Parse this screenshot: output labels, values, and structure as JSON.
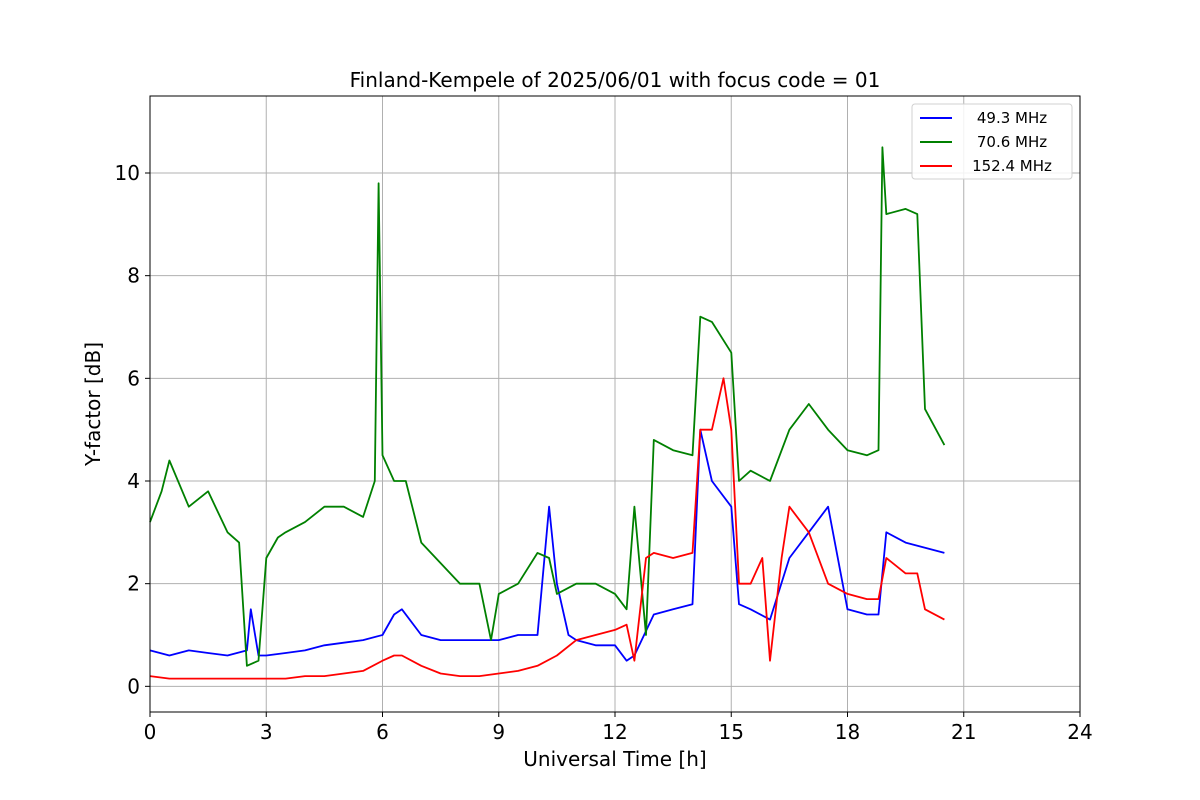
{
  "chart_data": {
    "type": "line",
    "title": "Finland-Kempele of 2025/06/01 with focus code = 01",
    "xlabel": "Universal Time [h]",
    "ylabel": "Y-factor [dB]",
    "xlim": [
      0,
      24
    ],
    "ylim": [
      -0.5,
      11.5
    ],
    "xticks": [
      0,
      3,
      6,
      9,
      12,
      15,
      18,
      21,
      24
    ],
    "yticks": [
      0,
      2,
      4,
      6,
      8,
      10
    ],
    "grid": true,
    "legend_position": "top-right",
    "series": [
      {
        "name": "49.3 MHz",
        "color": "#0000ff",
        "x": [
          0,
          0.5,
          1,
          1.5,
          2,
          2.5,
          2.6,
          2.8,
          3,
          3.5,
          4,
          4.5,
          5,
          5.5,
          6,
          6.3,
          6.5,
          7,
          7.5,
          8,
          8.5,
          9,
          9.5,
          10,
          10.3,
          10.5,
          10.8,
          11,
          11.5,
          12,
          12.3,
          12.5,
          13,
          13.5,
          14,
          14.2,
          14.5,
          15,
          15.2,
          15.5,
          16,
          16.5,
          17,
          17.5,
          18,
          18.5,
          18.8,
          19,
          19.5,
          20,
          20.5
        ],
        "y": [
          0.7,
          0.6,
          0.7,
          0.65,
          0.6,
          0.7,
          1.5,
          0.6,
          0.6,
          0.65,
          0.7,
          0.8,
          0.85,
          0.9,
          1.0,
          1.4,
          1.5,
          1.0,
          0.9,
          0.9,
          0.9,
          0.9,
          1.0,
          1.0,
          3.5,
          2.0,
          1.0,
          0.9,
          0.8,
          0.8,
          0.5,
          0.6,
          1.4,
          1.5,
          1.6,
          5.0,
          4.0,
          3.5,
          1.6,
          1.5,
          1.3,
          2.5,
          3.0,
          3.5,
          1.5,
          1.4,
          1.4,
          3.0,
          2.8,
          2.7,
          2.6
        ]
      },
      {
        "name": "70.6 MHz",
        "color": "#008000",
        "x": [
          0,
          0.3,
          0.5,
          1,
          1.5,
          2,
          2.3,
          2.5,
          2.8,
          3,
          3.3,
          3.5,
          4,
          4.5,
          5,
          5.5,
          5.8,
          5.9,
          6,
          6.3,
          6.6,
          7,
          7.5,
          8,
          8.5,
          8.8,
          9,
          9.5,
          10,
          10.3,
          10.5,
          11,
          11.5,
          12,
          12.3,
          12.5,
          12.8,
          13,
          13.5,
          14,
          14.2,
          14.5,
          15,
          15.2,
          15.5,
          16,
          16.5,
          17,
          17.5,
          18,
          18.5,
          18.8,
          18.9,
          19,
          19.5,
          19.8,
          20,
          20.5
        ],
        "y": [
          3.2,
          3.8,
          4.4,
          3.5,
          3.8,
          3.0,
          2.8,
          0.4,
          0.5,
          2.5,
          2.9,
          3.0,
          3.2,
          3.5,
          3.5,
          3.3,
          4.0,
          9.8,
          4.5,
          4.0,
          4.0,
          2.8,
          2.4,
          2.0,
          2.0,
          0.9,
          1.8,
          2.0,
          2.6,
          2.5,
          1.8,
          2.0,
          2.0,
          1.8,
          1.5,
          3.5,
          1.0,
          4.8,
          4.6,
          4.5,
          7.2,
          7.1,
          6.5,
          4.0,
          4.2,
          4.0,
          5.0,
          5.5,
          5.0,
          4.6,
          4.5,
          4.6,
          10.5,
          9.2,
          9.3,
          9.2,
          5.4,
          4.7
        ]
      },
      {
        "name": "152.4 MHz",
        "color": "#ff0000",
        "x": [
          0,
          0.5,
          1,
          1.5,
          2,
          2.5,
          3,
          3.5,
          4,
          4.5,
          5,
          5.5,
          6,
          6.3,
          6.5,
          7,
          7.5,
          8,
          8.5,
          9,
          9.5,
          10,
          10.5,
          11,
          11.5,
          12,
          12.3,
          12.5,
          12.8,
          13,
          13.5,
          14,
          14.2,
          14.5,
          14.8,
          15,
          15.2,
          15.5,
          15.8,
          16,
          16.3,
          16.5,
          17,
          17.5,
          18,
          18.5,
          18.8,
          19,
          19.5,
          19.8,
          20,
          20.5
        ],
        "y": [
          0.2,
          0.15,
          0.15,
          0.15,
          0.15,
          0.15,
          0.15,
          0.15,
          0.2,
          0.2,
          0.25,
          0.3,
          0.5,
          0.6,
          0.6,
          0.4,
          0.25,
          0.2,
          0.2,
          0.25,
          0.3,
          0.4,
          0.6,
          0.9,
          1.0,
          1.1,
          1.2,
          0.5,
          2.5,
          2.6,
          2.5,
          2.6,
          5.0,
          5.0,
          6.0,
          5.0,
          2.0,
          2.0,
          2.5,
          0.5,
          2.5,
          3.5,
          3.0,
          2.0,
          1.8,
          1.7,
          1.7,
          2.5,
          2.2,
          2.2,
          1.5,
          1.3
        ]
      }
    ]
  }
}
